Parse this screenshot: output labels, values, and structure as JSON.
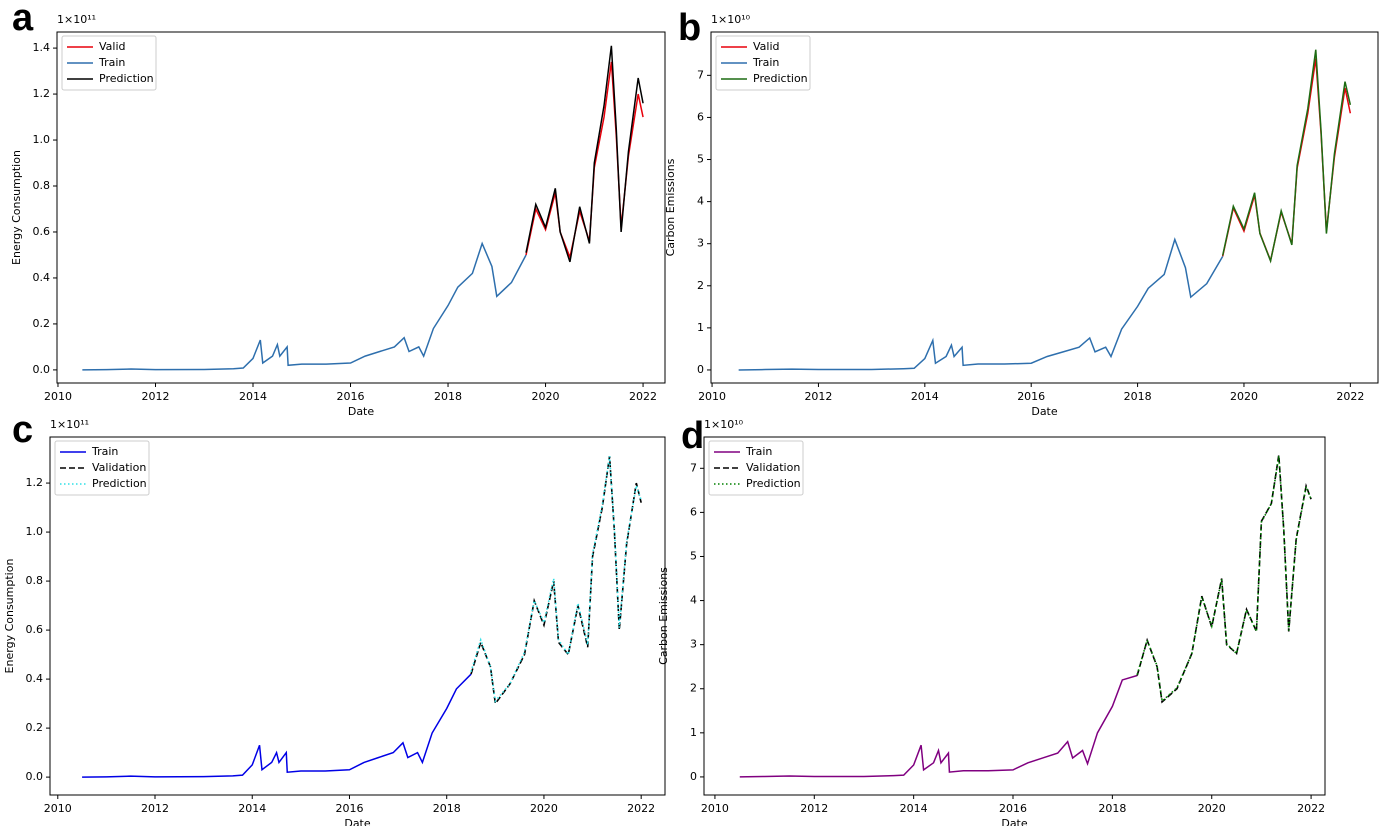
{
  "chart_data": [
    {
      "type": "line",
      "panel_label": "a",
      "y_offset_label": "1×10¹¹",
      "x_label": "Date",
      "y_label": "Energy Consumption",
      "xlim": [
        2009.98,
        2022.45
      ],
      "xticks": [
        2010,
        2012,
        2014,
        2016,
        2018,
        2020,
        2022
      ],
      "ylim": [
        -0.057,
        1.47
      ],
      "yticks": [
        {
          "value": 0,
          "label": "0.0"
        },
        {
          "value": 0.2,
          "label": "0.2"
        },
        {
          "value": 0.4,
          "label": "0.4"
        },
        {
          "value": 0.6,
          "label": "0.6"
        },
        {
          "value": 0.8,
          "label": "0.8"
        },
        {
          "value": 1,
          "label": "1.0"
        },
        {
          "value": 1.2,
          "label": "1.2"
        },
        {
          "value": 1.4,
          "label": "1.4"
        }
      ],
      "legend": "upper left",
      "x": [
        2010.5,
        2011.0,
        2011.5,
        2012.0,
        2013.0,
        2013.6,
        2013.8,
        2014.0,
        2014.15,
        2014.2,
        2014.4,
        2014.5,
        2014.55,
        2014.7,
        2014.72,
        2015.0,
        2015.5,
        2016.0,
        2016.3,
        2016.6,
        2016.9,
        2017.1,
        2017.2,
        2017.4,
        2017.5,
        2017.7,
        2018.0,
        2018.2,
        2018.5,
        2018.7,
        2018.9,
        2019.0,
        2019.3,
        2019.6,
        2019.8,
        2020.0,
        2020.2,
        2020.3,
        2020.5,
        2020.7,
        2020.9,
        2021.0,
        2021.2,
        2021.35,
        2021.45,
        2021.55,
        2021.7,
        2021.9,
        2022.0
      ],
      "series": [
        {
          "name": "Valid",
          "color": "#e8000b",
          "dash": "solid",
          "values": [
            null,
            null,
            null,
            null,
            null,
            null,
            null,
            null,
            null,
            null,
            null,
            null,
            null,
            null,
            null,
            null,
            null,
            null,
            null,
            null,
            null,
            null,
            null,
            null,
            null,
            null,
            null,
            null,
            null,
            null,
            null,
            null,
            null,
            0.5,
            0.7,
            0.61,
            0.77,
            0.6,
            0.49,
            0.69,
            0.56,
            0.88,
            1.1,
            1.34,
            1.02,
            0.62,
            0.93,
            1.2,
            1.1
          ]
        },
        {
          "name": "Train",
          "color": "#2e6fad",
          "dash": "solid",
          "values": [
            0,
            0.001,
            0.004,
            0.001,
            0.002,
            0.005,
            0.008,
            0.05,
            0.13,
            0.03,
            0.06,
            0.11,
            0.06,
            0.1,
            0.02,
            0.025,
            0.025,
            0.03,
            0.06,
            0.08,
            0.1,
            0.14,
            0.08,
            0.1,
            0.06,
            0.18,
            0.28,
            0.36,
            0.42,
            0.55,
            0.45,
            0.32,
            0.38,
            0.5,
            null,
            null,
            null,
            null,
            null,
            null,
            null,
            null,
            null,
            null,
            null,
            null,
            null,
            null,
            null
          ]
        },
        {
          "name": "Prediction",
          "color": "#000000",
          "dash": "solid",
          "values": [
            null,
            null,
            null,
            null,
            null,
            null,
            null,
            null,
            null,
            null,
            null,
            null,
            null,
            null,
            null,
            null,
            null,
            null,
            null,
            null,
            null,
            null,
            null,
            null,
            null,
            null,
            null,
            null,
            null,
            null,
            null,
            null,
            null,
            0.51,
            0.72,
            0.62,
            0.79,
            0.6,
            0.47,
            0.71,
            0.55,
            0.9,
            1.15,
            1.41,
            1.05,
            0.6,
            0.95,
            1.27,
            1.16
          ]
        }
      ]
    },
    {
      "type": "line",
      "panel_label": "b",
      "y_offset_label": "1×10¹⁰",
      "x_label": "Date",
      "y_label": "Carbon Emissions",
      "xlim": [
        2009.98,
        2022.52
      ],
      "xticks": [
        2010,
        2012,
        2014,
        2016,
        2018,
        2020,
        2022
      ],
      "ylim": [
        -0.31,
        8.03
      ],
      "yticks": [
        0,
        1,
        2,
        3,
        4,
        5,
        6,
        7
      ],
      "legend": "upper left",
      "x": [
        2010.5,
        2011.0,
        2011.5,
        2012.0,
        2013.0,
        2013.6,
        2013.8,
        2014.0,
        2014.15,
        2014.2,
        2014.4,
        2014.5,
        2014.55,
        2014.7,
        2014.72,
        2015.0,
        2015.5,
        2016.0,
        2016.3,
        2016.6,
        2016.9,
        2017.1,
        2017.2,
        2017.4,
        2017.5,
        2017.7,
        2018.0,
        2018.2,
        2018.5,
        2018.7,
        2018.9,
        2019.0,
        2019.3,
        2019.6,
        2019.8,
        2020.0,
        2020.2,
        2020.3,
        2020.5,
        2020.7,
        2020.9,
        2021.0,
        2021.2,
        2021.35,
        2021.45,
        2021.55,
        2021.7,
        2021.9,
        2022.0
      ],
      "series": [
        {
          "name": "Valid",
          "color": "#e8000b",
          "dash": "solid",
          "values": [
            null,
            null,
            null,
            null,
            null,
            null,
            null,
            null,
            null,
            null,
            null,
            null,
            null,
            null,
            null,
            null,
            null,
            null,
            null,
            null,
            null,
            null,
            null,
            null,
            null,
            null,
            null,
            null,
            null,
            null,
            null,
            null,
            null,
            2.7,
            3.85,
            3.3,
            4.15,
            3.25,
            2.6,
            3.75,
            3.0,
            4.8,
            6.1,
            7.4,
            5.6,
            3.3,
            5.05,
            6.7,
            6.1
          ]
        },
        {
          "name": "Train",
          "color": "#2e6fad",
          "dash": "solid",
          "values": [
            0,
            0.01,
            0.02,
            0.01,
            0.01,
            0.03,
            0.04,
            0.27,
            0.7,
            0.16,
            0.32,
            0.59,
            0.32,
            0.54,
            0.11,
            0.14,
            0.14,
            0.16,
            0.32,
            0.43,
            0.54,
            0.76,
            0.43,
            0.54,
            0.32,
            0.97,
            1.51,
            1.94,
            2.27,
            3.1,
            2.43,
            1.73,
            2.05,
            2.7,
            null,
            null,
            null,
            null,
            null,
            null,
            null,
            null,
            null,
            null,
            null,
            null,
            null,
            null,
            null
          ]
        },
        {
          "name": "Prediction",
          "color": "#1d6b12",
          "dash": "solid",
          "values": [
            null,
            null,
            null,
            null,
            null,
            null,
            null,
            null,
            null,
            null,
            null,
            null,
            null,
            null,
            null,
            null,
            null,
            null,
            null,
            null,
            null,
            null,
            null,
            null,
            null,
            null,
            null,
            null,
            null,
            null,
            null,
            null,
            null,
            2.72,
            3.89,
            3.35,
            4.21,
            3.24,
            2.59,
            3.78,
            2.97,
            4.86,
            6.21,
            7.61,
            5.67,
            3.24,
            5.13,
            6.85,
            6.3
          ]
        }
      ]
    },
    {
      "type": "line",
      "panel_label": "c",
      "y_offset_label": "1×10¹¹",
      "x_label": "Date",
      "y_label": "Energy Consumption",
      "xlim": [
        2009.84,
        2022.49
      ],
      "xticks": [
        2010,
        2012,
        2014,
        2016,
        2018,
        2020,
        2022
      ],
      "ylim": [
        -0.073,
        1.388
      ],
      "yticks": [
        {
          "value": 0,
          "label": "0.0"
        },
        {
          "value": 0.2,
          "label": "0.2"
        },
        {
          "value": 0.4,
          "label": "0.4"
        },
        {
          "value": 0.6,
          "label": "0.6"
        },
        {
          "value": 0.8,
          "label": "0.8"
        },
        {
          "value": 1,
          "label": "1.0"
        },
        {
          "value": 1.2,
          "label": "1.2"
        }
      ],
      "legend": "upper left",
      "x": [
        2010.5,
        2011.0,
        2011.5,
        2012.0,
        2013.0,
        2013.6,
        2013.8,
        2014.0,
        2014.15,
        2014.2,
        2014.4,
        2014.5,
        2014.55,
        2014.7,
        2014.72,
        2015.0,
        2015.5,
        2016.0,
        2016.3,
        2016.6,
        2016.9,
        2017.1,
        2017.2,
        2017.4,
        2017.5,
        2017.7,
        2018.0,
        2018.2,
        2018.5,
        2018.7,
        2018.9,
        2019.0,
        2019.3,
        2019.6,
        2019.8,
        2020.0,
        2020.2,
        2020.3,
        2020.5,
        2020.7,
        2020.9,
        2021.0,
        2021.2,
        2021.35,
        2021.45,
        2021.55,
        2021.7,
        2021.9,
        2022.0
      ],
      "series": [
        {
          "name": "Train",
          "color": "#0000e6",
          "dash": "solid",
          "values": [
            0,
            0.001,
            0.004,
            0.001,
            0.002,
            0.005,
            0.008,
            0.05,
            0.13,
            0.03,
            0.06,
            0.1,
            0.06,
            0.1,
            0.02,
            0.025,
            0.025,
            0.03,
            0.06,
            0.08,
            0.1,
            0.14,
            0.08,
            0.1,
            0.06,
            0.18,
            0.28,
            0.36,
            0.42,
            null,
            null,
            null,
            null,
            null,
            null,
            null,
            null,
            null,
            null,
            null,
            null,
            null,
            null,
            null,
            null,
            null,
            null,
            null,
            null
          ]
        },
        {
          "name": "Validation",
          "color": "#000000",
          "dash": "dashed",
          "values": [
            null,
            null,
            null,
            null,
            null,
            null,
            null,
            null,
            null,
            null,
            null,
            null,
            null,
            null,
            null,
            null,
            null,
            null,
            null,
            null,
            null,
            null,
            null,
            null,
            null,
            null,
            null,
            null,
            0.42,
            0.55,
            0.45,
            0.3,
            0.38,
            0.5,
            0.72,
            0.62,
            0.8,
            0.55,
            0.5,
            0.7,
            0.53,
            0.9,
            1.1,
            1.31,
            1.0,
            0.6,
            0.95,
            1.2,
            1.12
          ]
        },
        {
          "name": "Prediction",
          "color": "#2fe0e6",
          "dash": "dotted",
          "values": [
            null,
            null,
            null,
            null,
            null,
            null,
            null,
            null,
            null,
            null,
            null,
            null,
            null,
            null,
            null,
            null,
            null,
            null,
            null,
            null,
            null,
            null,
            null,
            null,
            null,
            null,
            null,
            null,
            0.43,
            0.56,
            0.45,
            0.31,
            0.38,
            0.51,
            0.72,
            0.63,
            0.81,
            0.56,
            0.5,
            0.71,
            0.54,
            0.91,
            1.11,
            1.31,
            1.01,
            0.61,
            0.96,
            1.19,
            1.13
          ]
        }
      ]
    },
    {
      "type": "line",
      "panel_label": "d",
      "y_offset_label": "1×10¹⁰",
      "x_label": "Date",
      "y_label": "Carbon Emissions",
      "xlim": [
        2009.78,
        2022.28
      ],
      "xticks": [
        2010,
        2012,
        2014,
        2016,
        2018,
        2020,
        2022
      ],
      "ylim": [
        -0.41,
        7.71
      ],
      "yticks": [
        0,
        1,
        2,
        3,
        4,
        5,
        6,
        7
      ],
      "legend": "upper left",
      "x": [
        2010.5,
        2011.0,
        2011.5,
        2012.0,
        2013.0,
        2013.6,
        2013.8,
        2014.0,
        2014.15,
        2014.2,
        2014.4,
        2014.5,
        2014.55,
        2014.7,
        2014.72,
        2015.0,
        2015.5,
        2016.0,
        2016.3,
        2016.6,
        2016.9,
        2017.1,
        2017.2,
        2017.4,
        2017.5,
        2017.7,
        2018.0,
        2018.2,
        2018.5,
        2018.7,
        2018.9,
        2019.0,
        2019.3,
        2019.6,
        2019.8,
        2020.0,
        2020.2,
        2020.3,
        2020.5,
        2020.7,
        2020.9,
        2021.0,
        2021.2,
        2021.35,
        2021.45,
        2021.55,
        2021.7,
        2021.9,
        2022.0
      ],
      "series": [
        {
          "name": "Train",
          "color": "#800080",
          "dash": "solid",
          "values": [
            0,
            0.01,
            0.02,
            0.01,
            0.01,
            0.03,
            0.04,
            0.27,
            0.72,
            0.16,
            0.32,
            0.6,
            0.32,
            0.54,
            0.11,
            0.14,
            0.14,
            0.16,
            0.32,
            0.43,
            0.54,
            0.8,
            0.43,
            0.6,
            0.3,
            1.0,
            1.6,
            2.2,
            2.3,
            null,
            null,
            null,
            null,
            null,
            null,
            null,
            null,
            null,
            null,
            null,
            null,
            null,
            null,
            null,
            null,
            null,
            null,
            null,
            null
          ]
        },
        {
          "name": "Validation",
          "color": "#000000",
          "dash": "dashed",
          "values": [
            null,
            null,
            null,
            null,
            null,
            null,
            null,
            null,
            null,
            null,
            null,
            null,
            null,
            null,
            null,
            null,
            null,
            null,
            null,
            null,
            null,
            null,
            null,
            null,
            null,
            null,
            null,
            null,
            2.3,
            3.1,
            2.5,
            1.7,
            2.0,
            2.8,
            4.1,
            3.4,
            4.5,
            3.0,
            2.8,
            3.8,
            3.3,
            5.8,
            6.2,
            7.3,
            5.6,
            3.3,
            5.4,
            6.6,
            6.3
          ]
        },
        {
          "name": "Prediction",
          "color": "#008000",
          "dash": "dotted",
          "values": [
            null,
            null,
            null,
            null,
            null,
            null,
            null,
            null,
            null,
            null,
            null,
            null,
            null,
            null,
            null,
            null,
            null,
            null,
            null,
            null,
            null,
            null,
            null,
            null,
            null,
            null,
            null,
            null,
            2.32,
            3.1,
            2.52,
            1.72,
            2.02,
            2.8,
            4.08,
            3.42,
            4.48,
            3.02,
            2.8,
            3.79,
            3.3,
            5.78,
            6.2,
            7.28,
            5.6,
            3.32,
            5.38,
            6.58,
            6.3
          ]
        }
      ]
    }
  ]
}
